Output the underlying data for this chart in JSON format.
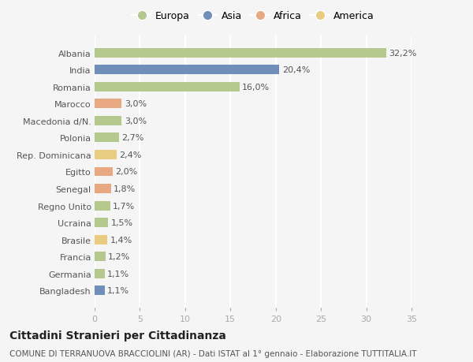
{
  "categories": [
    "Albania",
    "India",
    "Romania",
    "Marocco",
    "Macedonia d/N.",
    "Polonia",
    "Rep. Dominicana",
    "Egitto",
    "Senegal",
    "Regno Unito",
    "Ucraina",
    "Brasile",
    "Francia",
    "Germania",
    "Bangladesh"
  ],
  "values": [
    32.2,
    20.4,
    16.0,
    3.0,
    3.0,
    2.7,
    2.4,
    2.0,
    1.8,
    1.7,
    1.5,
    1.4,
    1.2,
    1.1,
    1.1
  ],
  "labels": [
    "32,2%",
    "20,4%",
    "16,0%",
    "3,0%",
    "3,0%",
    "2,7%",
    "2,4%",
    "2,0%",
    "1,8%",
    "1,7%",
    "1,5%",
    "1,4%",
    "1,2%",
    "1,1%",
    "1,1%"
  ],
  "colors": [
    "#b5c98e",
    "#6f8fba",
    "#b5c98e",
    "#e8a882",
    "#b5c98e",
    "#b5c98e",
    "#e8cc82",
    "#e8a882",
    "#e8a882",
    "#b5c98e",
    "#b5c98e",
    "#e8cc82",
    "#b5c98e",
    "#b5c98e",
    "#6f8fba"
  ],
  "legend_labels": [
    "Europa",
    "Asia",
    "Africa",
    "America"
  ],
  "legend_colors": [
    "#b5c98e",
    "#6f8fba",
    "#e8a882",
    "#e8cc82"
  ],
  "title": "Cittadini Stranieri per Cittadinanza",
  "subtitle": "COMUNE DI TERRANUOVA BRACCIOLINI (AR) - Dati ISTAT al 1° gennaio - Elaborazione TUTTITALIA.IT",
  "xlim": [
    0,
    35
  ],
  "xticks": [
    0,
    5,
    10,
    15,
    20,
    25,
    30,
    35
  ],
  "bg_color": "#f5f5f5",
  "bar_height": 0.55,
  "label_fontsize": 8,
  "tick_fontsize": 8,
  "title_fontsize": 10,
  "subtitle_fontsize": 7.5
}
